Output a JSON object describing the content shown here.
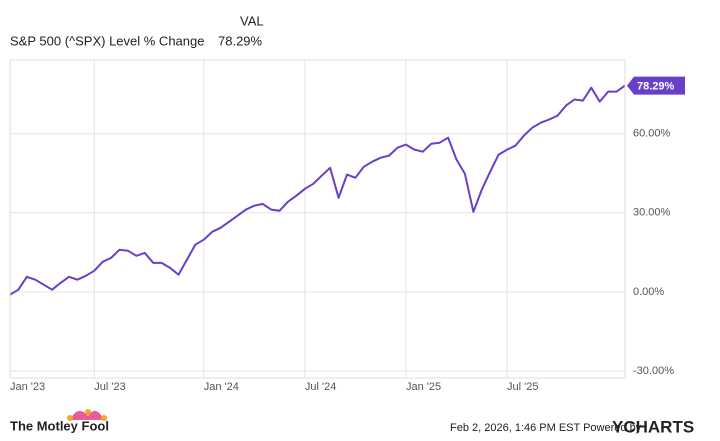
{
  "chart_data": {
    "type": "line",
    "legend_header": "VAL",
    "categories": [
      "Jan '23",
      null,
      null,
      null,
      null,
      null,
      null,
      null,
      null,
      null,
      "Jul '23",
      null,
      null,
      null,
      null,
      null,
      null,
      null,
      null,
      null,
      null,
      null,
      null,
      "Jan '24",
      null,
      null,
      null,
      null,
      null,
      null,
      null,
      null,
      null,
      null,
      null,
      "Jul '24",
      null,
      null,
      null,
      null,
      null,
      null,
      null,
      null,
      null,
      null,
      null,
      "Jan '25",
      null,
      null,
      null,
      null,
      null,
      null,
      null,
      null,
      null,
      null,
      null,
      "Jul '25",
      null,
      null,
      null,
      null,
      null,
      null,
      null,
      null,
      null,
      null,
      null,
      null,
      null,
      null
    ],
    "series": [
      {
        "name": "S&P 500 (^SPX) Level % Change",
        "color": "#6a3fc8",
        "values": [
          -1.1,
          0.8,
          5.7,
          4.6,
          2.7,
          0.8,
          3.4,
          5.7,
          4.6,
          6.1,
          8.0,
          11.4,
          12.9,
          16.0,
          15.6,
          13.7,
          14.8,
          11.0,
          11.0,
          9.1,
          6.5,
          12.2,
          17.9,
          19.8,
          22.8,
          24.3,
          26.6,
          28.9,
          31.2,
          32.7,
          33.4,
          31.2,
          30.8,
          34.2,
          36.5,
          39.1,
          41.0,
          44.1,
          47.1,
          35.7,
          44.5,
          43.3,
          47.5,
          49.4,
          50.9,
          51.7,
          54.7,
          55.9,
          54.0,
          53.2,
          56.2,
          56.6,
          58.5,
          50.2,
          44.8,
          30.4,
          38.8,
          45.6,
          52.1,
          54.0,
          55.5,
          59.3,
          62.3,
          64.2,
          65.4,
          66.9,
          70.7,
          73.0,
          72.6,
          77.5,
          72.2,
          76.0,
          76.0,
          78.29
        ],
        "value_labels": [
          null,
          null,
          null,
          null,
          null,
          null,
          null,
          null,
          null,
          null,
          null,
          null,
          null,
          null,
          null,
          null,
          null,
          null,
          null,
          null,
          null,
          null,
          null,
          null,
          null,
          null,
          null,
          null,
          null,
          null,
          null,
          null,
          null,
          null,
          null,
          null,
          null,
          null,
          null,
          null,
          null,
          null,
          null,
          null,
          null,
          null,
          null,
          null,
          null,
          null,
          null,
          null,
          null,
          null,
          null,
          null,
          null,
          null,
          null,
          null,
          null,
          null,
          null,
          null,
          null,
          null,
          null,
          null,
          null,
          null,
          null,
          null,
          null,
          "78.29%"
        ]
      }
    ],
    "ylim": [
      -32.7,
      88
    ],
    "yticks": [
      {
        "value": -30,
        "label": "-30.00%"
      },
      {
        "value": 0,
        "label": "0.00%"
      },
      {
        "value": 30,
        "label": "30.00%"
      },
      {
        "value": 60,
        "label": "60.00%"
      }
    ],
    "grid": true
  },
  "footer": {
    "brand_left": "The Motley Fool",
    "timestamp": "Feb 2, 2026, 1:46 PM EST  Powered by",
    "brand_right": "YCHARTS"
  }
}
